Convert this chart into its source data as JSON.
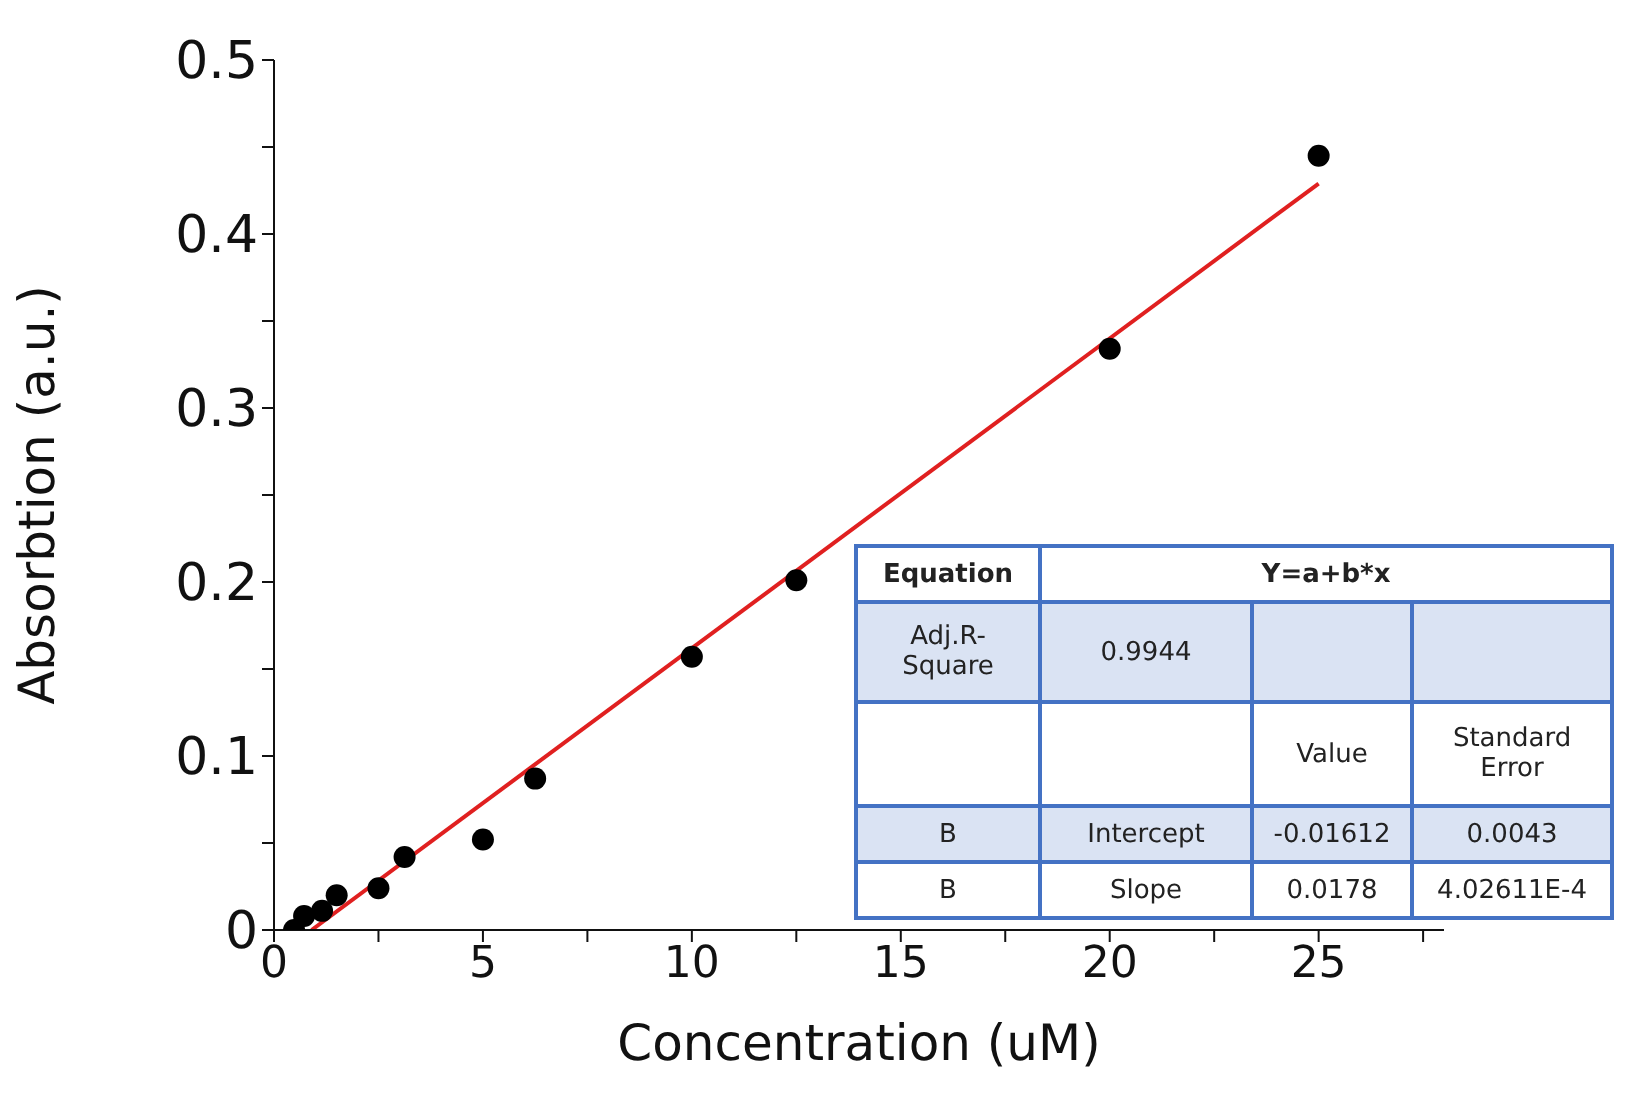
{
  "chart_data": {
    "type": "scatter",
    "xlabel": "Concentration (uM)",
    "ylabel": "Absorbtion (a.u.)",
    "xlim": [
      0,
      28
    ],
    "xticks": [
      0,
      {
        "value": 2.5,
        "label": null
      },
      5,
      {
        "value": 7.5,
        "label": null
      },
      10,
      {
        "value": 12.5,
        "label": null
      },
      15,
      {
        "value": 17.5,
        "label": null
      },
      20,
      {
        "value": 22.5,
        "label": null
      },
      25,
      {
        "value": 27.5,
        "label": null
      }
    ],
    "ylim": [
      0,
      0.5
    ],
    "yticks": [
      0,
      {
        "value": 0.05,
        "label": null
      },
      0.1,
      {
        "value": 0.15,
        "label": null
      },
      0.2,
      {
        "value": 0.25,
        "label": null
      },
      0.3,
      {
        "value": 0.35,
        "label": null
      },
      0.4,
      {
        "value": 0.45,
        "label": null
      },
      0.5
    ],
    "series": [
      {
        "color": "#000000",
        "marker": "circle",
        "x": [
          0.48,
          0.72,
          1.15,
          1.5,
          2.5,
          3.125,
          5,
          6.25,
          10,
          12.5,
          20,
          25
        ],
        "values": [
          0.0,
          0.008,
          0.011,
          0.02,
          0.024,
          0.042,
          0.052,
          0.087,
          0.157,
          0.201,
          0.334,
          0.445
        ]
      },
      {
        "type": "line",
        "color": "#e02020",
        "marker": "none",
        "x": [
          0.9,
          25
        ],
        "values": [
          0,
          0.429
        ]
      }
    ],
    "annotations": [
      "Equation",
      "Y=a+b*x",
      "Adj.R-Square",
      "0.9944",
      "Value",
      "Standard Error",
      "B",
      "Intercept",
      "-0.01612",
      "0.0043",
      "B",
      "Slope",
      "0.0178",
      "4.02611E-4"
    ]
  }
}
